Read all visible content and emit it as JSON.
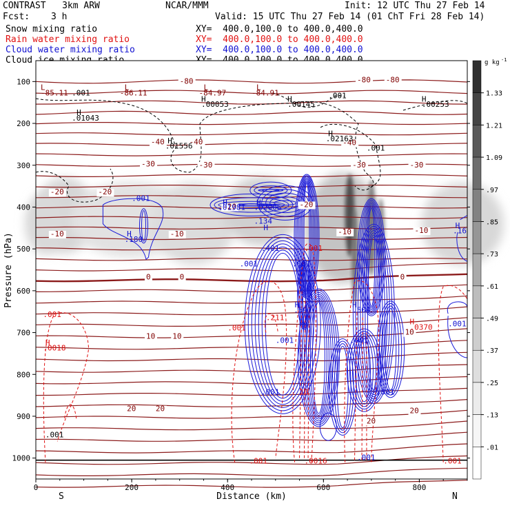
{
  "header": {
    "model": "CONTRAST   3km ARW",
    "org": "NCAR/MMM",
    "init": "Init: 12 UTC Thu 27 Feb 14",
    "fcst_label": "Fcst:",
    "fcst_value": "3 h",
    "valid": "Valid: 15 UTC Thu 27 Feb 14 (01 ChT Fri 28 Feb 14)",
    "fields": [
      {
        "name": "Snow mixing ratio",
        "xy": "XY=  400.0,100.0 to 400.0,400.0",
        "color": "#000000"
      },
      {
        "name": "Rain water mixing ratio",
        "xy": "XY=  400.0,100.0 to 400.0,400.0",
        "color": "#e01010"
      },
      {
        "name": "Cloud water mixing ratio",
        "xy": "XY=  400.0,100.0 to 400.0,400.0",
        "color": "#1010d0"
      },
      {
        "name": "Cloud ice mixing ratio",
        "xy": "XY=  400.0,100.0 to 400.0,400.0",
        "color": "#000000"
      }
    ]
  },
  "chart_data": {
    "type": "contour-cross-section",
    "xlabel": "Distance (km)",
    "ylabel": "Pressure (hPa)",
    "xlim": [
      0,
      900
    ],
    "ylim": [
      1050,
      50
    ],
    "x_ticks": [
      0,
      200,
      400,
      600,
      800
    ],
    "y_ticks": [
      100,
      200,
      300,
      400,
      500,
      600,
      700,
      800,
      900,
      1000
    ],
    "x_ends": {
      "left": "S",
      "right": "N"
    },
    "colorbar": {
      "unit": "g kg",
      "unit_exp": "-1",
      "ticks": [
        "1.33",
        "1.21",
        "1.09",
        ".97",
        ".85",
        ".73",
        ".61",
        ".49",
        ".37",
        ".25",
        ".13",
        ".01"
      ],
      "fills": [
        "#303030",
        "#454545",
        "#5a5a5a",
        "#6e6e6e",
        "#828282",
        "#969696",
        "#aaaaaa",
        "#bdbdbd",
        "#cecece",
        "#dedede",
        "#ececec",
        "#f6f6f6",
        "#ffffff"
      ]
    },
    "temperature_labels": [
      {
        "x": 300,
        "p": 105,
        "text": "-80"
      },
      {
        "x": 670,
        "p": 102,
        "text": "-80"
      },
      {
        "x": 730,
        "p": 102,
        "text": "-80"
      },
      {
        "x": 240,
        "p": 250,
        "text": "-40"
      },
      {
        "x": 320,
        "p": 250,
        "text": "-40"
      },
      {
        "x": 640,
        "p": 252,
        "text": "-40"
      },
      {
        "x": 220,
        "p": 303,
        "text": "-30"
      },
      {
        "x": 340,
        "p": 305,
        "text": "-30"
      },
      {
        "x": 660,
        "p": 305,
        "text": "-30"
      },
      {
        "x": 780,
        "p": 305,
        "text": "-30"
      },
      {
        "x": 30,
        "p": 370,
        "text": "-20"
      },
      {
        "x": 130,
        "p": 370,
        "text": "-20"
      },
      {
        "x": 390,
        "p": 405,
        "text": "-20"
      },
      {
        "x": 550,
        "p": 400,
        "text": "-20"
      },
      {
        "x": 30,
        "p": 470,
        "text": "-10"
      },
      {
        "x": 280,
        "p": 470,
        "text": "-10"
      },
      {
        "x": 630,
        "p": 465,
        "text": "-10"
      },
      {
        "x": 790,
        "p": 462,
        "text": "-10"
      },
      {
        "x": 230,
        "p": 573,
        "text": "0"
      },
      {
        "x": 300,
        "p": 573,
        "text": "0"
      },
      {
        "x": 760,
        "p": 573,
        "text": "0"
      },
      {
        "x": 230,
        "p": 715,
        "text": "10"
      },
      {
        "x": 285,
        "p": 715,
        "text": "10"
      },
      {
        "x": 770,
        "p": 705,
        "text": "10"
      },
      {
        "x": 190,
        "p": 888,
        "text": "20"
      },
      {
        "x": 250,
        "p": 888,
        "text": "20"
      },
      {
        "x": 690,
        "p": 917,
        "text": "20"
      },
      {
        "x": 780,
        "p": 893,
        "text": "20"
      }
    ],
    "extrema_labels": [
      {
        "x": 10,
        "p": 120,
        "text": "L",
        "color": "#800000"
      },
      {
        "x": 10,
        "p": 133,
        "text": "-85.11",
        "color": "#800000"
      },
      {
        "x": 185,
        "p": 120,
        "text": "L",
        "color": "#800000"
      },
      {
        "x": 175,
        "p": 133,
        "text": "-86.11",
        "color": "#800000"
      },
      {
        "x": 350,
        "p": 120,
        "text": "L",
        "color": "#800000"
      },
      {
        "x": 340,
        "p": 133,
        "text": "-84.97",
        "color": "#800000"
      },
      {
        "x": 460,
        "p": 120,
        "text": "L",
        "color": "#800000"
      },
      {
        "x": 450,
        "p": 133,
        "text": "-84.91",
        "color": "#800000"
      },
      {
        "x": 75,
        "p": 133,
        "text": ".001",
        "color": "#000000"
      },
      {
        "x": 345,
        "p": 148,
        "text": "H",
        "color": "#000000"
      },
      {
        "x": 345,
        "p": 160,
        "text": ".00053",
        "color": "#000000"
      },
      {
        "x": 525,
        "p": 148,
        "text": "H",
        "color": "#000000"
      },
      {
        "x": 525,
        "p": 160,
        "text": ".00145",
        "color": "#000000"
      },
      {
        "x": 610,
        "p": 140,
        "text": ".001",
        "color": "#000000"
      },
      {
        "x": 805,
        "p": 148,
        "text": "H",
        "color": "#000000"
      },
      {
        "x": 805,
        "p": 160,
        "text": ".00253",
        "color": "#000000"
      },
      {
        "x": 85,
        "p": 180,
        "text": "H",
        "color": "#000000"
      },
      {
        "x": 75,
        "p": 193,
        "text": ".01043",
        "color": "#000000"
      },
      {
        "x": 275,
        "p": 248,
        "text": "H",
        "color": "#000000"
      },
      {
        "x": 270,
        "p": 260,
        "text": ".01556",
        "color": "#000000"
      },
      {
        "x": 610,
        "p": 230,
        "text": "H",
        "color": "#000000"
      },
      {
        "x": 605,
        "p": 243,
        "text": ".02163",
        "color": "#000000"
      },
      {
        "x": 690,
        "p": 265,
        "text": ".001",
        "color": "#000000"
      },
      {
        "x": 200,
        "p": 385,
        "text": ".001",
        "color": "#1010d0"
      },
      {
        "x": 190,
        "p": 470,
        "text": "H",
        "color": "#1010d0"
      },
      {
        "x": 185,
        "p": 483,
        "text": ".180",
        "color": "#1010d0"
      },
      {
        "x": 390,
        "p": 395,
        "text": "H",
        "color": "#1010d0"
      },
      {
        "x": 380,
        "p": 407,
        "text": ".01981",
        "color": "#1010d0"
      },
      {
        "x": 460,
        "p": 395,
        "text": "H",
        "color": "#1010d0"
      },
      {
        "x": 455,
        "p": 407,
        "text": ".02006",
        "color": "#1010d0"
      },
      {
        "x": 455,
        "p": 440,
        "text": ".134",
        "color": "#1010d0"
      },
      {
        "x": 475,
        "p": 455,
        "text": "H",
        "color": "#1010d0"
      },
      {
        "x": 470,
        "p": 505,
        "text": ".401",
        "color": "#1010d0"
      },
      {
        "x": 560,
        "p": 505,
        "text": ".001",
        "color": "#e01010"
      },
      {
        "x": 425,
        "p": 542,
        "text": ".001",
        "color": "#1010d0"
      },
      {
        "x": 535,
        "p": 542,
        "text": ".001",
        "color": "#1010d0"
      },
      {
        "x": 875,
        "p": 450,
        "text": "H",
        "color": "#1010d0"
      },
      {
        "x": 870,
        "p": 463,
        "text": ".16",
        "color": "#1010d0"
      },
      {
        "x": 540,
        "p": 640,
        "text": "H",
        "color": "#1010d0"
      },
      {
        "x": 538,
        "p": 652,
        "text": ".597",
        "color": "#1010d0"
      },
      {
        "x": 660,
        "p": 640,
        "text": "H",
        "color": "#1010d0"
      },
      {
        "x": 660,
        "p": 652,
        "text": ".504",
        "color": "#1010d0"
      },
      {
        "x": 480,
        "p": 670,
        "text": ".211",
        "color": "#e01010"
      },
      {
        "x": 500,
        "p": 725,
        "text": ".001",
        "color": "#1010d0"
      },
      {
        "x": 655,
        "p": 725,
        "text": ".001",
        "color": "#1010d0"
      },
      {
        "x": 400,
        "p": 695,
        "text": ".001",
        "color": "#e01010"
      },
      {
        "x": 15,
        "p": 663,
        "text": ".001",
        "color": "#e01010"
      },
      {
        "x": 20,
        "p": 730,
        "text": "H",
        "color": "#e01010"
      },
      {
        "x": 15,
        "p": 743,
        "text": ".0018",
        "color": "#e01010"
      },
      {
        "x": 780,
        "p": 680,
        "text": "H",
        "color": "#e01010"
      },
      {
        "x": 780,
        "p": 693,
        "text": ".0370",
        "color": "#e01010"
      },
      {
        "x": 860,
        "p": 685,
        "text": ".001",
        "color": "#1010d0"
      },
      {
        "x": 470,
        "p": 848,
        "text": ".001",
        "color": "#1010d0"
      },
      {
        "x": 710,
        "p": 848,
        "text": ".001",
        "color": "#1010d0"
      },
      {
        "x": 550,
        "p": 848,
        "text": "10",
        "color": "#e01010"
      },
      {
        "x": 20,
        "p": 950,
        "text": ".001",
        "color": "#000000"
      },
      {
        "x": 670,
        "p": 1005,
        "text": ".001",
        "color": "#1010d0"
      },
      {
        "x": 445,
        "p": 1013,
        "text": ".001",
        "color": "#e01010"
      },
      {
        "x": 560,
        "p": 1013,
        "text": ".0016",
        "color": "#e01010"
      },
      {
        "x": 850,
        "p": 1013,
        "text": ".001",
        "color": "#e01010"
      }
    ]
  }
}
